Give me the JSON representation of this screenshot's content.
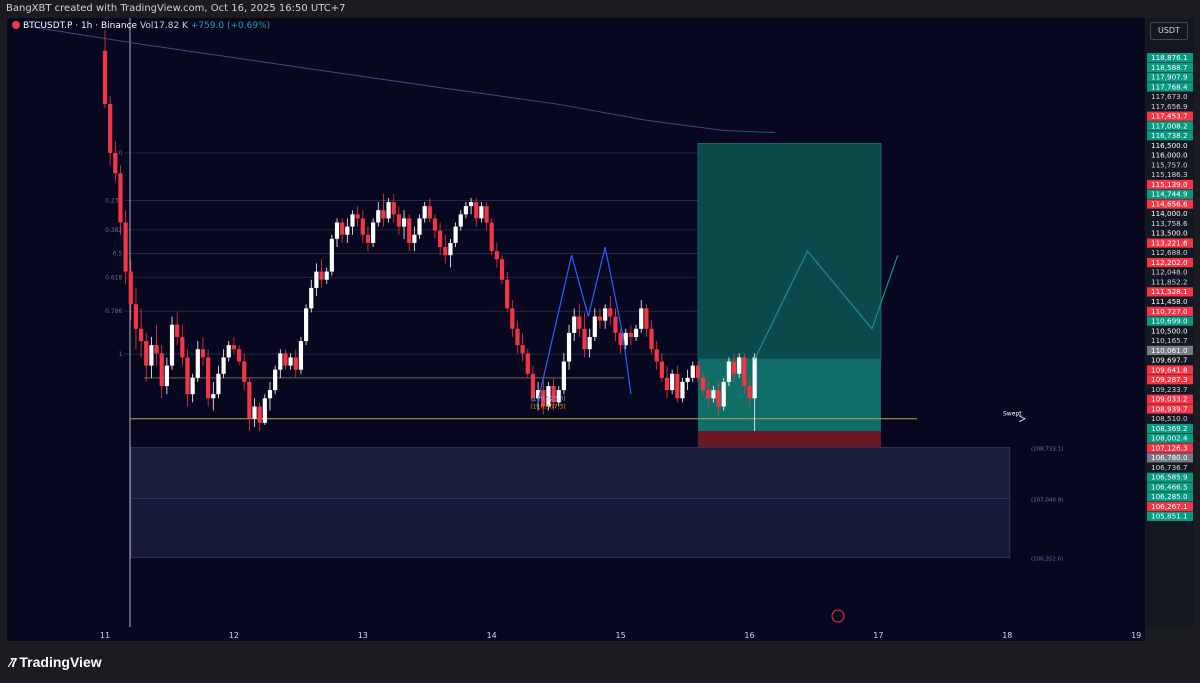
{
  "header": {
    "attribution": "BangXBT created with TradingView.com, Oct 16, 2025 16:50 UTC+7"
  },
  "legend": {
    "symbol": "BTCUSDT.P · 1h · Binance",
    "volume": "Vol17.82 K",
    "change": "+759.0 (+0.69%)"
  },
  "price_scale": {
    "currency": "USDT",
    "labels": [
      {
        "value": 118876.1,
        "text": "118,876.1",
        "color": "#089981"
      },
      {
        "value": 118588.7,
        "text": "118,588.7",
        "color": "#089981"
      },
      {
        "value": 117907.9,
        "text": "117,907.9",
        "color": "#089981"
      },
      {
        "value": 117768.4,
        "text": "117,768.4",
        "color": "#089981"
      },
      {
        "value": 117673.0,
        "text": "117,673.0",
        "color": "#d1d4dc"
      },
      {
        "value": 117656.9,
        "text": "117,656.9",
        "color": "#d1d4dc"
      },
      {
        "value": 117453.7,
        "text": "117,453.7",
        "color": "#f23645"
      },
      {
        "value": 117008.2,
        "text": "117,008.2",
        "color": "#089981"
      },
      {
        "value": 116738.2,
        "text": "116,738.2",
        "color": "#089981"
      },
      {
        "value": 116500.0,
        "text": "116,500.0",
        "color": "#ffffff"
      },
      {
        "value": 116000.0,
        "text": "116,000.0",
        "color": "#ffffff"
      },
      {
        "value": 115757.0,
        "text": "115,757.0",
        "color": "#d1d4dc"
      },
      {
        "value": 115186.3,
        "text": "115,186.3",
        "color": "#d1d4dc"
      },
      {
        "value": 115139.0,
        "text": "115,139.0",
        "color": "#f23645"
      },
      {
        "value": 114744.9,
        "text": "114,744.9",
        "color": "#089981"
      },
      {
        "value": 114656.6,
        "text": "114,656.6",
        "color": "#f23645"
      },
      {
        "value": 114000.0,
        "text": "114,000.0",
        "color": "#ffffff"
      },
      {
        "value": 113758.6,
        "text": "113,758.6",
        "color": "#d1d4dc"
      },
      {
        "value": 113500.0,
        "text": "113,500.0",
        "color": "#ffffff"
      },
      {
        "value": 113221.6,
        "text": "113,221.6",
        "color": "#f23645"
      },
      {
        "value": 112688.0,
        "text": "112,688.0",
        "color": "#d1d4dc"
      },
      {
        "value": 112202.0,
        "text": "112,202.0",
        "color": "#f23645"
      },
      {
        "value": 112048.0,
        "text": "112,048.0",
        "color": "#d1d4dc"
      },
      {
        "value": 111852.2,
        "text": "111,852.2",
        "color": "#d1d4dc"
      },
      {
        "value": 111528.1,
        "text": "111,528.1",
        "color": "#f23645"
      },
      {
        "value": 111458.0,
        "text": "111,458.0",
        "color": "#ffffff"
      },
      {
        "value": 110727.0,
        "text": "110,727.0",
        "color": "#f23645"
      },
      {
        "value": 110699.0,
        "text": "110,699.0",
        "color": "#089981"
      },
      {
        "value": 110500.0,
        "text": "110,500.0",
        "color": "#ffffff"
      },
      {
        "value": 110165.7,
        "text": "110,165.7",
        "color": "#d1d4dc"
      },
      {
        "value": 110061.0,
        "text": "110,061.0",
        "color": "#787b86"
      },
      {
        "value": 109697.7,
        "text": "109,697.7",
        "color": "#ffffff"
      },
      {
        "value": 109641.8,
        "text": "109,641.8",
        "color": "#f23645"
      },
      {
        "value": 109287.3,
        "text": "109,287.3",
        "color": "#f23645"
      },
      {
        "value": 109233.7,
        "text": "109,233.7",
        "color": "#d1d4dc"
      },
      {
        "value": 109033.2,
        "text": "109,033.2",
        "color": "#f23645"
      },
      {
        "value": 108939.7,
        "text": "108,939.7",
        "color": "#f23645"
      },
      {
        "value": 108510.0,
        "text": "108,510.0",
        "color": "#d1d4dc"
      },
      {
        "value": 108369.2,
        "text": "108,369.2",
        "color": "#089981"
      },
      {
        "value": 108002.4,
        "text": "108,002.4",
        "color": "#089981"
      },
      {
        "value": 107126.3,
        "text": "107,126.3",
        "color": "#f23645"
      },
      {
        "value": 106780.0,
        "text": "106,780.0",
        "color": "#787b86"
      },
      {
        "value": 106736.7,
        "text": "106,736.7",
        "color": "#d1d4dc"
      },
      {
        "value": 106585.9,
        "text": "106,585.9",
        "color": "#089981"
      },
      {
        "value": 106466.5,
        "text": "106,466.5",
        "color": "#089981"
      },
      {
        "value": 106285.0,
        "text": "106,285.0",
        "color": "#089981"
      },
      {
        "value": 106267.1,
        "text": "106,267.1",
        "color": "#f23645"
      },
      {
        "value": 105851.1,
        "text": "105,851.1",
        "color": "#089981"
      }
    ],
    "countdown": "09:17"
  },
  "chart_data": {
    "type": "candlestick",
    "timeframe": "1h",
    "x_ticks": [
      "11",
      "12",
      "13",
      "14",
      "15",
      "16",
      "17",
      "18",
      "19"
    ],
    "ylim": [
      105700,
      119000
    ],
    "candles": [
      [
        11.0,
        119000,
        119500,
        117600,
        117700
      ],
      [
        11.04,
        117700,
        117900,
        116200,
        116500
      ],
      [
        11.08,
        116500,
        116800,
        115800,
        116000
      ],
      [
        11.12,
        116000,
        116200,
        114500,
        114800
      ],
      [
        11.16,
        114800,
        115100,
        113300,
        113600
      ],
      [
        11.2,
        113600,
        113900,
        112400,
        112800
      ],
      [
        11.24,
        112800,
        113200,
        111700,
        112200
      ],
      [
        11.28,
        112200,
        112700,
        111500,
        111900
      ],
      [
        11.32,
        111900,
        112100,
        110900,
        111300
      ],
      [
        11.36,
        111300,
        112000,
        111000,
        111800
      ],
      [
        11.4,
        111800,
        112300,
        111300,
        111600
      ],
      [
        11.44,
        111600,
        111800,
        110500,
        110800
      ],
      [
        11.48,
        110800,
        111500,
        110600,
        111300
      ],
      [
        11.52,
        111300,
        112500,
        111200,
        112300
      ],
      [
        11.56,
        112300,
        112600,
        111800,
        112000
      ],
      [
        11.6,
        112000,
        112300,
        111300,
        111500
      ],
      [
        11.64,
        111500,
        111700,
        110300,
        110600
      ],
      [
        11.68,
        110600,
        111100,
        110400,
        111000
      ],
      [
        11.72,
        111000,
        111900,
        110900,
        111700
      ],
      [
        11.76,
        111700,
        112000,
        111300,
        111500
      ],
      [
        11.8,
        111500,
        111700,
        110300,
        110500
      ],
      [
        11.84,
        110500,
        110900,
        110200,
        110600
      ],
      [
        11.88,
        110600,
        111300,
        110500,
        111100
      ],
      [
        11.92,
        111100,
        111700,
        111000,
        111500
      ],
      [
        11.96,
        111500,
        111900,
        111400,
        111800
      ],
      [
        12.0,
        111800,
        112000,
        111600,
        111700
      ],
      [
        12.04,
        111700,
        111800,
        111300,
        111400
      ],
      [
        12.08,
        111400,
        111600,
        110700,
        110900
      ],
      [
        12.12,
        110900,
        111000,
        109700,
        110000
      ],
      [
        12.16,
        110000,
        110500,
        109800,
        110300
      ],
      [
        12.2,
        110300,
        110400,
        109700,
        109900
      ],
      [
        12.24,
        109900,
        110600,
        109850,
        110500
      ],
      [
        12.28,
        110500,
        110900,
        110200,
        110700
      ],
      [
        12.32,
        110700,
        111300,
        110600,
        111200
      ],
      [
        12.36,
        111200,
        111700,
        111000,
        111600
      ],
      [
        12.4,
        111600,
        111700,
        111200,
        111300
      ],
      [
        12.44,
        111300,
        111600,
        111200,
        111500
      ],
      [
        12.48,
        111500,
        111700,
        111000,
        111200
      ],
      [
        12.52,
        111200,
        112000,
        111100,
        111900
      ],
      [
        12.56,
        111900,
        112800,
        111800,
        112700
      ],
      [
        12.6,
        112700,
        113400,
        112600,
        113200
      ],
      [
        12.64,
        113200,
        113800,
        113000,
        113600
      ],
      [
        12.68,
        113600,
        113900,
        113200,
        113400
      ],
      [
        12.72,
        113400,
        113700,
        113300,
        113600
      ],
      [
        12.76,
        113600,
        114500,
        113500,
        114400
      ],
      [
        12.8,
        114400,
        114900,
        114200,
        114800
      ],
      [
        12.84,
        114800,
        114900,
        114300,
        114500
      ],
      [
        12.88,
        114500,
        114900,
        114300,
        114700
      ],
      [
        12.92,
        114700,
        115100,
        114500,
        115000
      ],
      [
        12.96,
        115000,
        115200,
        114700,
        114900
      ],
      [
        13.0,
        114900,
        115100,
        114300,
        114500
      ],
      [
        13.04,
        114500,
        114700,
        114100,
        114300
      ],
      [
        13.08,
        114300,
        114900,
        114200,
        114800
      ],
      [
        13.12,
        114800,
        115300,
        114700,
        115100
      ],
      [
        13.16,
        115100,
        115500,
        114700,
        114900
      ],
      [
        13.2,
        114900,
        115400,
        114800,
        115300
      ],
      [
        13.24,
        115300,
        115500,
        114800,
        115000
      ],
      [
        13.28,
        115000,
        115200,
        114500,
        114700
      ],
      [
        13.32,
        114700,
        115100,
        114400,
        114900
      ],
      [
        13.36,
        114900,
        115000,
        114100,
        114300
      ],
      [
        13.4,
        114300,
        114700,
        114100,
        114500
      ],
      [
        13.44,
        114500,
        115000,
        114400,
        114900
      ],
      [
        13.48,
        114900,
        115300,
        114800,
        115200
      ],
      [
        13.52,
        115200,
        115400,
        114800,
        114900
      ],
      [
        13.56,
        114900,
        115000,
        114400,
        114600
      ],
      [
        13.6,
        114600,
        114800,
        114000,
        114200
      ],
      [
        13.64,
        114200,
        114500,
        113800,
        114000
      ],
      [
        13.68,
        114000,
        114400,
        113700,
        114300
      ],
      [
        13.72,
        114300,
        114800,
        114200,
        114700
      ],
      [
        13.76,
        114700,
        115100,
        114600,
        115000
      ],
      [
        13.8,
        115000,
        115300,
        114900,
        115200
      ],
      [
        13.84,
        115200,
        115400,
        115000,
        115300
      ],
      [
        13.88,
        115300,
        115400,
        114700,
        114900
      ],
      [
        13.92,
        114900,
        115300,
        114800,
        115200
      ],
      [
        13.96,
        115200,
        115300,
        114600,
        114800
      ],
      [
        14.0,
        114800,
        114900,
        114000,
        114100
      ],
      [
        14.04,
        114100,
        114300,
        113700,
        113900
      ],
      [
        14.08,
        113900,
        114000,
        113300,
        113400
      ],
      [
        14.12,
        113400,
        113600,
        112600,
        112700
      ],
      [
        14.16,
        112700,
        112900,
        112000,
        112200
      ],
      [
        14.2,
        112200,
        112400,
        111600,
        111800
      ],
      [
        14.24,
        111800,
        112100,
        111400,
        111600
      ],
      [
        14.28,
        111600,
        111700,
        111000,
        111100
      ],
      [
        14.32,
        111100,
        111300,
        110400,
        110500
      ],
      [
        14.36,
        110500,
        110900,
        110200,
        110700
      ],
      [
        14.4,
        110700,
        111000,
        110100,
        110300
      ],
      [
        14.44,
        110300,
        110900,
        110200,
        110800
      ],
      [
        14.48,
        110800,
        111000,
        110200,
        110400
      ],
      [
        14.52,
        110400,
        110800,
        110300,
        110700
      ],
      [
        14.56,
        110700,
        111600,
        110600,
        111400
      ],
      [
        14.6,
        111400,
        112300,
        111200,
        112100
      ],
      [
        14.64,
        112100,
        112700,
        111900,
        112500
      ],
      [
        14.68,
        112500,
        112800,
        112000,
        112200
      ],
      [
        14.72,
        112200,
        112600,
        111500,
        111700
      ],
      [
        14.76,
        111700,
        112200,
        111500,
        112000
      ],
      [
        14.8,
        112000,
        112700,
        111900,
        112500
      ],
      [
        14.84,
        112500,
        112700,
        112200,
        112400
      ],
      [
        14.88,
        112400,
        112800,
        112200,
        112700
      ],
      [
        14.92,
        112700,
        113000,
        112300,
        112500
      ],
      [
        14.96,
        112500,
        112700,
        111900,
        112100
      ],
      [
        15.0,
        112100,
        112200,
        111600,
        111800
      ],
      [
        15.04,
        111800,
        112200,
        111700,
        112100
      ],
      [
        15.08,
        112100,
        112300,
        111800,
        112000
      ],
      [
        15.12,
        112000,
        112300,
        111900,
        112200
      ],
      [
        15.16,
        112200,
        112900,
        112100,
        112700
      ],
      [
        15.2,
        112700,
        112800,
        112000,
        112200
      ],
      [
        15.24,
        112200,
        112400,
        111600,
        111700
      ],
      [
        15.28,
        111700,
        111900,
        111200,
        111400
      ],
      [
        15.32,
        111400,
        111600,
        110900,
        111000
      ],
      [
        15.36,
        111000,
        111300,
        110500,
        110700
      ],
      [
        15.4,
        110700,
        111200,
        110600,
        111100
      ],
      [
        15.44,
        111100,
        111300,
        110400,
        110500
      ],
      [
        15.48,
        110500,
        111000,
        110400,
        110900
      ],
      [
        15.52,
        110900,
        111200,
        110700,
        111000
      ],
      [
        15.56,
        111000,
        111400,
        110900,
        111300
      ],
      [
        15.6,
        111300,
        111400,
        110900,
        111000
      ],
      [
        15.64,
        111000,
        111100,
        110600,
        110700
      ],
      [
        15.68,
        110700,
        110900,
        110300,
        110500
      ],
      [
        15.72,
        110500,
        110800,
        110400,
        110700
      ],
      [
        15.76,
        110700,
        110900,
        110100,
        110300
      ],
      [
        15.8,
        110300,
        111000,
        110200,
        110900
      ],
      [
        15.84,
        110900,
        111500,
        110800,
        111400
      ],
      [
        15.88,
        111400,
        111600,
        110900,
        111100
      ],
      [
        15.92,
        111100,
        111600,
        111000,
        111500
      ],
      [
        15.96,
        111500,
        111600,
        110600,
        110800
      ],
      [
        16.0,
        110800,
        111000,
        110300,
        110500
      ],
      [
        16.04,
        110500,
        111600,
        109700,
        111500
      ]
    ],
    "vwap_line": [
      [
        10.4,
        119600
      ],
      [
        11.2,
        119200
      ],
      [
        12.5,
        118600
      ],
      [
        13.6,
        118100
      ],
      [
        14.5,
        117700
      ],
      [
        15.2,
        117300
      ],
      [
        15.8,
        117050
      ],
      [
        16.2,
        117000
      ]
    ],
    "drawings": {
      "fib_levels": [
        {
          "value": 116500,
          "label": "0"
        },
        {
          "value": 115340,
          "label": "0.236"
        },
        {
          "value": 114620,
          "label": "0.382"
        },
        {
          "value": 114040,
          "label": "0.5"
        },
        {
          "value": 113460,
          "label": "0.618"
        },
        {
          "value": 112630,
          "label": "0.786"
        },
        {
          "value": 111580,
          "label": "1"
        }
      ],
      "support_lines": [
        {
          "x1": 11.3,
          "x2": 15.03,
          "value": 111000
        },
        {
          "x1": 11.2,
          "x2": 17.3,
          "value": 110000
        }
      ],
      "swept_label": "Swept",
      "long_position": {
        "x1": 15.6,
        "x2": 17.02,
        "entry": 111458,
        "target": 116738,
        "stop": 109700
      },
      "projection_path": [
        [
          16.04,
          111458
        ],
        [
          16.45,
          114100
        ],
        [
          16.95,
          112200
        ],
        [
          17.15,
          114000
        ]
      ],
      "blue_path": [
        [
          14.35,
          110300
        ],
        [
          14.62,
          114000
        ],
        [
          14.75,
          112500
        ],
        [
          14.88,
          114200
        ],
        [
          15.02,
          112000
        ],
        [
          15.08,
          110600
        ]
      ],
      "fvg_zones": [
        {
          "top": 109300,
          "bottom": 108050,
          "label": "(108,733.1)"
        },
        {
          "top": 108050,
          "bottom": 106600,
          "label": "(107,040.9)"
        }
      ],
      "fvg_bottom_label": "(106,352.6)",
      "price_annotations": [
        "(110,523.3)",
        "(110,307.3)"
      ]
    }
  }
}
